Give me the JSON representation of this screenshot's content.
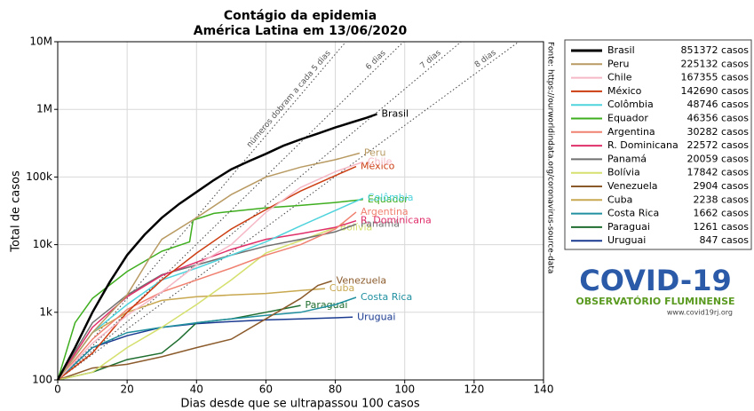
{
  "chart_data": {
    "type": "line",
    "title": "Contágio da epidemia",
    "subtitle": "América Latina em 13/06/2020",
    "x_label": "Dias desde que se ultrapassou 100 casos",
    "y_label": "Total de casos",
    "source": "Fonte: https://ourworldindata.org/coronavirus-source-data",
    "log_y": true,
    "grid": true,
    "legend": "outside-right",
    "xlim": [
      0,
      140
    ],
    "ylim": [
      100,
      10000000
    ],
    "xticks": [
      0,
      20,
      40,
      60,
      80,
      100,
      120,
      140
    ],
    "yticks": [
      100,
      {
        "value": 1000,
        "label": "1k"
      },
      {
        "value": 10000,
        "label": "10k"
      },
      {
        "value": 100000,
        "label": "100k"
      },
      {
        "value": 1000000,
        "label": "1M"
      },
      {
        "value": 10000000,
        "label": "10M"
      }
    ],
    "reference_lines": [
      {
        "label": "números dobram a cada 5 dias",
        "doubling_days": 5
      },
      {
        "label": "6 dias",
        "doubling_days": 6
      },
      {
        "label": "7 dias",
        "doubling_days": 7
      },
      {
        "label": "8 dias",
        "doubling_days": 8
      }
    ],
    "series": [
      {
        "name": "Brasil",
        "color": "#000000",
        "legend_label": "851372 casos",
        "x": [
          0,
          5,
          10,
          15,
          20,
          25,
          30,
          35,
          40,
          45,
          50,
          55,
          60,
          65,
          70,
          75,
          80,
          85,
          89,
          92
        ],
        "values": [
          100,
          300,
          1000,
          2800,
          7000,
          14000,
          25000,
          40000,
          60000,
          90000,
          130000,
          170000,
          220000,
          290000,
          360000,
          440000,
          540000,
          650000,
          750000,
          851372
        ]
      },
      {
        "name": "Peru",
        "color": "#b89a62",
        "legend_label": "225132 casos",
        "x": [
          0,
          10,
          20,
          27,
          30,
          40,
          50,
          60,
          70,
          80,
          87
        ],
        "values": [
          100,
          500,
          1800,
          7000,
          12000,
          25000,
          55000,
          100000,
          140000,
          180000,
          225132
        ]
      },
      {
        "name": "Chile",
        "color": "#f5b8c6",
        "legend_label": "167355 casos",
        "x": [
          0,
          10,
          20,
          30,
          40,
          50,
          60,
          70,
          80,
          88
        ],
        "values": [
          100,
          350,
          900,
          2000,
          5000,
          10000,
          30000,
          70000,
          120000,
          167355
        ]
      },
      {
        "name": "México",
        "color": "#cc3d12",
        "legend_label": "142690 casos",
        "x": [
          0,
          10,
          20,
          30,
          40,
          50,
          60,
          70,
          80,
          86
        ],
        "values": [
          100,
          250,
          1000,
          3000,
          7500,
          17000,
          33000,
          62000,
          105000,
          142690
        ]
      },
      {
        "name": "Colômbia",
        "color": "#4fd3dc",
        "legend_label": "48746 casos",
        "x": [
          0,
          10,
          20,
          30,
          40,
          50,
          60,
          70,
          80,
          88
        ],
        "values": [
          100,
          500,
          1300,
          3000,
          4500,
          7000,
          11000,
          19000,
          32000,
          48746
        ]
      },
      {
        "name": "Equador",
        "color": "#3fae1f",
        "legend_label": "46356 casos",
        "x": [
          0,
          5,
          10,
          20,
          30,
          38,
          39,
          45,
          50,
          60,
          70,
          80,
          88
        ],
        "values": [
          100,
          700,
          1600,
          4000,
          8000,
          11000,
          23000,
          29000,
          31000,
          35000,
          38000,
          42000,
          46356
        ]
      },
      {
        "name": "Argentina",
        "color": "#f08070",
        "legend_label": "30282 casos",
        "x": [
          0,
          10,
          20,
          30,
          40,
          50,
          60,
          70,
          80,
          86
        ],
        "values": [
          100,
          400,
          1100,
          2000,
          3000,
          4500,
          7000,
          10000,
          17000,
          30282
        ]
      },
      {
        "name": "R. Dominicana",
        "color": "#e0306a",
        "legend_label": "22572 casos",
        "x": [
          0,
          10,
          20,
          30,
          40,
          50,
          60,
          70,
          80,
          86
        ],
        "values": [
          100,
          600,
          1700,
          3500,
          5500,
          8500,
          12000,
          14500,
          18000,
          22572
        ]
      },
      {
        "name": "Panamá",
        "color": "#707070",
        "legend_label": "20059 casos",
        "x": [
          0,
          10,
          20,
          30,
          40,
          50,
          60,
          70,
          80,
          86
        ],
        "values": [
          100,
          700,
          1800,
          3600,
          5000,
          7000,
          9500,
          12000,
          15500,
          20059
        ]
      },
      {
        "name": "Bolívia",
        "color": "#d5e06e",
        "legend_label": "17842 casos",
        "x": [
          0,
          10,
          20,
          30,
          40,
          50,
          60,
          70,
          80
        ],
        "values": [
          100,
          130,
          300,
          600,
          1300,
          3000,
          7500,
          11500,
          17842
        ]
      },
      {
        "name": "Venezuela",
        "color": "#8b5a2b",
        "legend_label": "2904 casos",
        "x": [
          0,
          10,
          20,
          30,
          40,
          50,
          60,
          70,
          75,
          79
        ],
        "values": [
          100,
          150,
          170,
          220,
          300,
          400,
          800,
          1600,
          2500,
          2904
        ]
      },
      {
        "name": "Cuba",
        "color": "#c8a850",
        "legend_label": "2238 casos",
        "x": [
          0,
          10,
          20,
          30,
          40,
          50,
          60,
          70,
          77
        ],
        "values": [
          100,
          500,
          1000,
          1500,
          1700,
          1800,
          1900,
          2100,
          2238
        ]
      },
      {
        "name": "Costa Rica",
        "color": "#2090a0",
        "legend_label": "1662 casos",
        "x": [
          0,
          10,
          20,
          30,
          40,
          50,
          60,
          70,
          80,
          86
        ],
        "values": [
          100,
          300,
          500,
          600,
          700,
          800,
          900,
          1000,
          1300,
          1662
        ]
      },
      {
        "name": "Paraguai",
        "color": "#1f6e30",
        "legend_label": "1261 casos",
        "x": [
          0,
          10,
          20,
          30,
          35,
          40,
          50,
          60,
          70
        ],
        "values": [
          100,
          130,
          200,
          250,
          400,
          700,
          800,
          1000,
          1261
        ]
      },
      {
        "name": "Uruguai",
        "color": "#1a3a90",
        "legend_label": "847 casos",
        "x": [
          0,
          10,
          20,
          30,
          40,
          50,
          60,
          70,
          80,
          85
        ],
        "values": [
          100,
          300,
          450,
          600,
          680,
          730,
          770,
          800,
          830,
          847
        ]
      }
    ]
  },
  "logo": {
    "title": "COVID-19",
    "subtitle": "OBSERVATÓRIO FLUMINENSE",
    "url": "www.covid19rj.org"
  }
}
